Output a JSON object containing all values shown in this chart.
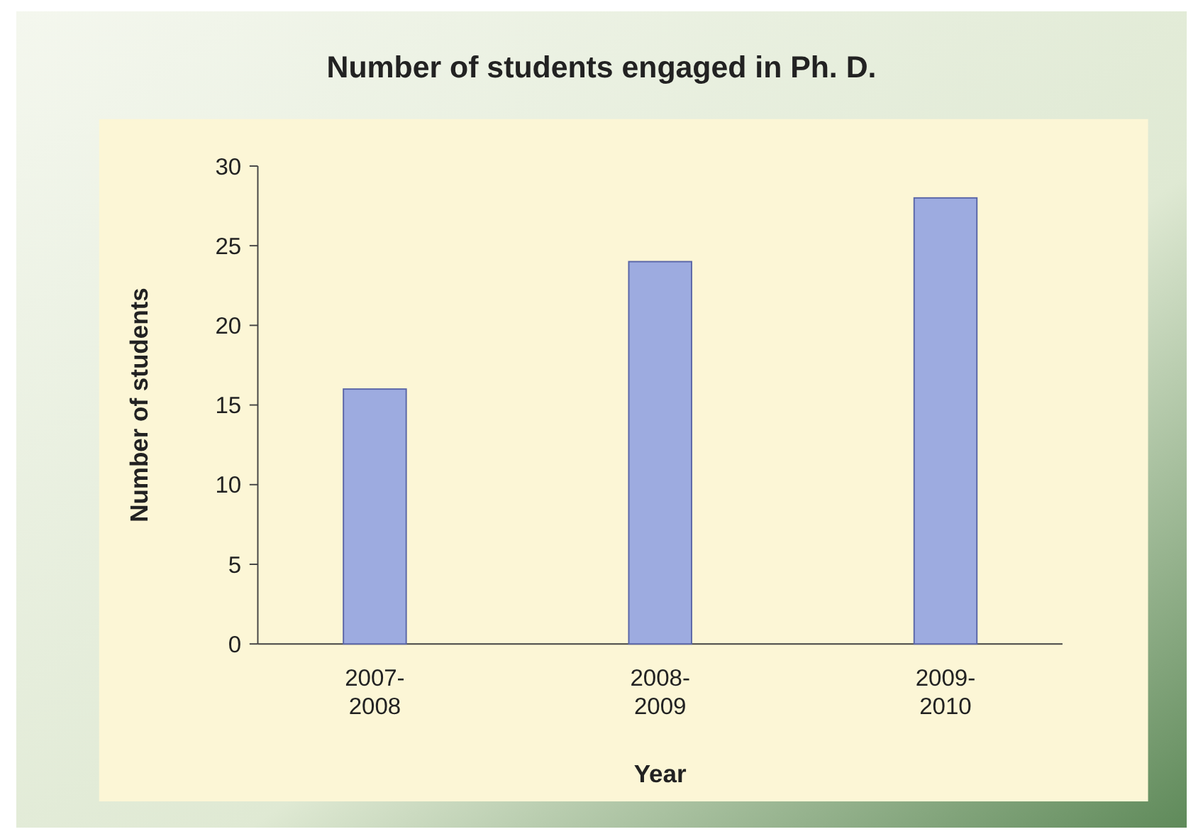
{
  "chart_data": {
    "type": "bar",
    "title": "Number of students engaged in Ph. D.",
    "xlabel": "Year",
    "ylabel": "Number of students",
    "categories": [
      "2007-2008",
      "2008-2009",
      "2009-2010"
    ],
    "values": [
      16,
      24,
      28
    ],
    "color": "#9dabe0",
    "ylim": [
      0,
      30
    ],
    "yticks": [
      0,
      5,
      10,
      15,
      20,
      25,
      30
    ],
    "grid": false
  }
}
